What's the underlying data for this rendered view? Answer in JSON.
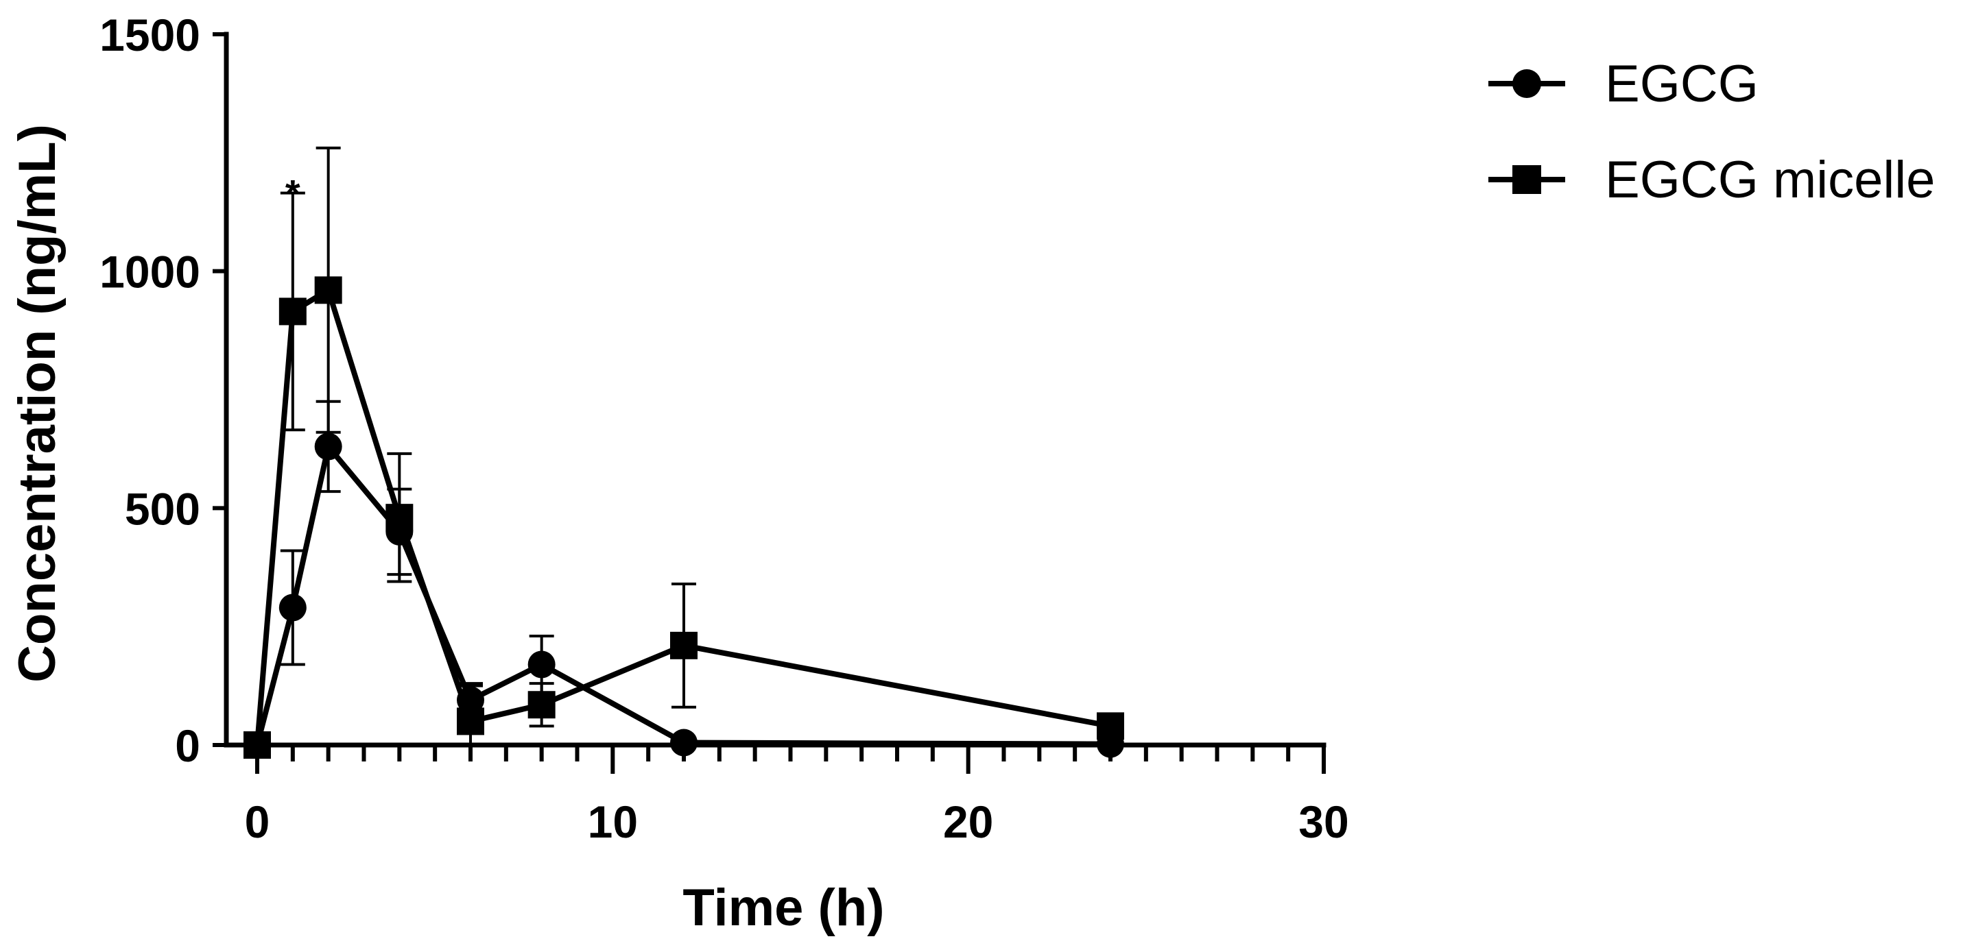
{
  "chart_data": {
    "type": "line",
    "xlabel": "Time (h)",
    "ylabel": "Concentration (ng/mL)",
    "xlim": [
      0,
      30
    ],
    "ylim": [
      0,
      1500
    ],
    "xticks": [
      0,
      10,
      20,
      30
    ],
    "yticks": [
      0,
      500,
      1000,
      1500
    ],
    "grid": false,
    "legend_position": "top-right",
    "series": [
      {
        "name": "EGCG",
        "marker": "circle",
        "x": [
          0,
          1,
          2,
          4,
          6,
          8,
          12,
          24
        ],
        "y": [
          0,
          290,
          630,
          450,
          95,
          170,
          5,
          2
        ],
        "err": [
          0,
          120,
          95,
          90,
          35,
          60,
          0,
          0
        ]
      },
      {
        "name": "EGCG micelle",
        "marker": "square",
        "x": [
          0,
          1,
          2,
          4,
          6,
          8,
          12,
          24
        ],
        "y": [
          0,
          915,
          960,
          480,
          50,
          85,
          210,
          40
        ],
        "err": [
          0,
          250,
          300,
          135,
          75,
          45,
          130,
          0
        ]
      }
    ],
    "annotations": [
      {
        "text": "*",
        "x": 1,
        "y": 1165
      }
    ]
  }
}
